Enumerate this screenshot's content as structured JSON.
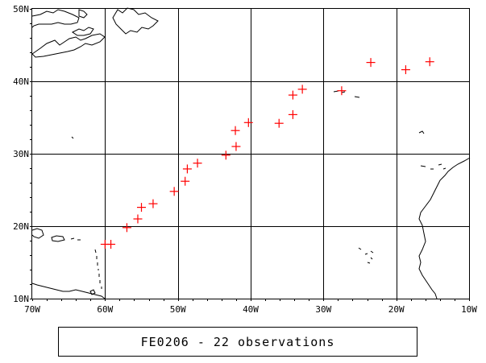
{
  "map": {
    "lat_labels": [
      "50N",
      "40N",
      "30N",
      "20N",
      "10N"
    ],
    "lon_labels": [
      "70W",
      "60W",
      "50W",
      "40W",
      "30W",
      "20W",
      "10W"
    ],
    "lon_range": [
      -70,
      -10
    ],
    "lat_range": [
      10,
      50
    ],
    "grid": true,
    "frame_color": "#000000",
    "coastline_color": "#000000",
    "marker": {
      "symbol": "plus",
      "color": "#ff0000"
    },
    "observations": [
      {
        "lon": -60.0,
        "lat": 17.5
      },
      {
        "lon": -59.2,
        "lat": 17.5
      },
      {
        "lon": -57.0,
        "lat": 19.8
      },
      {
        "lon": -55.5,
        "lat": 21.0
      },
      {
        "lon": -55.0,
        "lat": 22.6
      },
      {
        "lon": -53.4,
        "lat": 23.1
      },
      {
        "lon": -50.5,
        "lat": 24.8
      },
      {
        "lon": -49.0,
        "lat": 26.2
      },
      {
        "lon": -48.7,
        "lat": 27.9
      },
      {
        "lon": -47.3,
        "lat": 28.7
      },
      {
        "lon": -43.4,
        "lat": 29.8
      },
      {
        "lon": -42.0,
        "lat": 31.0
      },
      {
        "lon": -42.1,
        "lat": 33.2
      },
      {
        "lon": -40.3,
        "lat": 34.3
      },
      {
        "lon": -36.1,
        "lat": 34.2
      },
      {
        "lon": -34.2,
        "lat": 35.4
      },
      {
        "lon": -34.2,
        "lat": 38.1
      },
      {
        "lon": -32.9,
        "lat": 38.9
      },
      {
        "lon": -27.5,
        "lat": 38.7
      },
      {
        "lon": -23.5,
        "lat": 42.6
      },
      {
        "lon": -18.7,
        "lat": 41.6
      },
      {
        "lon": -15.4,
        "lat": 42.7
      }
    ]
  },
  "caption": "FE0206 - 22 observations"
}
